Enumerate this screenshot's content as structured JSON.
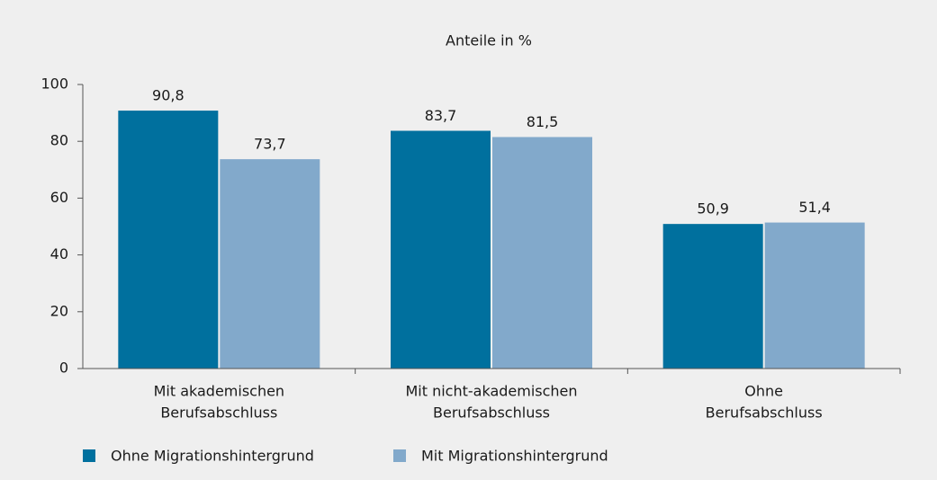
{
  "chart_data": {
    "type": "bar",
    "title": "Anteile in %",
    "categories": [
      [
        "Mit akademischen",
        "Berufsabschluss"
      ],
      [
        "Mit nicht-akademischen",
        "Berufsabschluss"
      ],
      [
        "Ohne",
        "Berufsabschluss"
      ]
    ],
    "series": [
      {
        "name": "Ohne Migrationshintergrund",
        "color": "#00709e",
        "values": [
          90.8,
          83.7,
          50.9
        ],
        "value_labels": [
          "90,8",
          "83,7",
          "50,9"
        ]
      },
      {
        "name": "Mit Migrationshintergrund",
        "color": "#82a9cb",
        "values": [
          73.7,
          81.5,
          51.4
        ],
        "value_labels": [
          "73,7",
          "81,5",
          "51,4"
        ]
      }
    ],
    "ylim": [
      0,
      100
    ],
    "yticks": [
      0,
      20,
      40,
      60,
      80,
      100
    ],
    "legend": "bottom-left"
  }
}
